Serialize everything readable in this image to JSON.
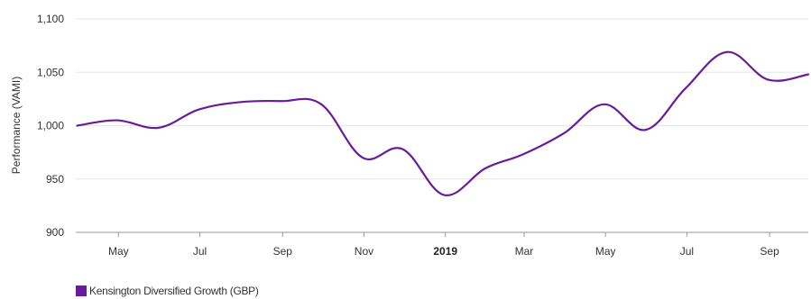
{
  "chart_data": {
    "type": "line",
    "ylabel": "Performance (VAMI)",
    "ylim": [
      900,
      1100
    ],
    "yticks": [
      "1,100",
      "1,050",
      "1,000",
      "950",
      "900"
    ],
    "ytick_values": [
      1100,
      1050,
      1000,
      950,
      900
    ],
    "xlim": [
      "2018-03-30",
      "2019-09-30"
    ],
    "xticks": [
      {
        "label": "May",
        "date": "2018-05-01",
        "bold": false
      },
      {
        "label": "Jul",
        "date": "2018-07-01",
        "bold": false
      },
      {
        "label": "Sep",
        "date": "2018-09-01",
        "bold": false
      },
      {
        "label": "Nov",
        "date": "2018-11-01",
        "bold": false
      },
      {
        "label": "2019",
        "date": "2019-01-01",
        "bold": true
      },
      {
        "label": "Mar",
        "date": "2019-03-01",
        "bold": false
      },
      {
        "label": "May",
        "date": "2019-05-01",
        "bold": false
      },
      {
        "label": "Jul",
        "date": "2019-07-01",
        "bold": false
      },
      {
        "label": "Sep",
        "date": "2019-09-01",
        "bold": false
      }
    ],
    "grid": "horizontal",
    "legend_position": "bottom-left",
    "series": [
      {
        "name": "Kensington Diversified Growth (GBP)",
        "color": "#6a1b9a",
        "x": [
          "2018-03-31",
          "2018-04-30",
          "2018-05-31",
          "2018-06-30",
          "2018-07-31",
          "2018-08-31",
          "2018-09-30",
          "2018-10-31",
          "2018-11-30",
          "2018-12-31",
          "2019-01-31",
          "2019-02-28",
          "2019-03-31",
          "2019-04-30",
          "2019-05-31",
          "2019-06-30",
          "2019-07-31",
          "2019-08-31",
          "2019-09-30"
        ],
        "y": [
          1000,
          1005,
          998,
          1015,
          1022,
          1023,
          1020,
          970,
          978,
          935,
          960,
          973,
          993,
          1020,
          996,
          1035,
          1069,
          1043,
          1048
        ]
      }
    ]
  }
}
